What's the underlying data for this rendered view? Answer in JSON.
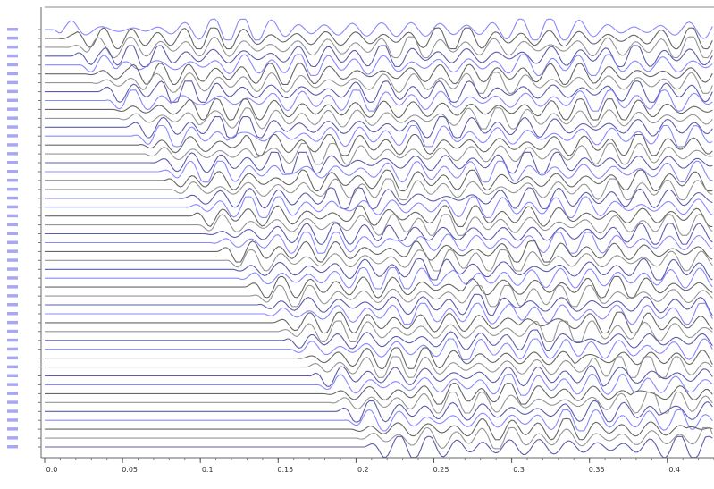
{
  "chart_data": {
    "type": "line",
    "title": "",
    "xlabel": "",
    "ylabel": "",
    "xlim": [
      0,
      0.43
    ],
    "x_ticks": [
      {
        "value": 0.0,
        "label": "0.0"
      },
      {
        "value": 0.05,
        "label": "0.05"
      },
      {
        "value": 0.1,
        "label": "0.1"
      },
      {
        "value": 0.15,
        "label": "0.15"
      },
      {
        "value": 0.2,
        "label": "0.2"
      },
      {
        "value": 0.25,
        "label": "0.25"
      },
      {
        "value": 0.3,
        "label": "0.3"
      },
      {
        "value": 0.35,
        "label": "0.35"
      },
      {
        "value": 0.4,
        "label": "0.4"
      }
    ],
    "trace_count": 48,
    "trace_colors": [
      "#7b7bff",
      "#555555",
      "#8a8a8a",
      "#4a4aa0"
    ],
    "first_arrival_s": {
      "start": 0.005,
      "end": 0.205
    },
    "second_arrival_s": {
      "start": 0.01,
      "end": 0.43
    },
    "amplitude": 0.38,
    "dominant_period_s": 0.018,
    "grid": false,
    "legend": false
  }
}
